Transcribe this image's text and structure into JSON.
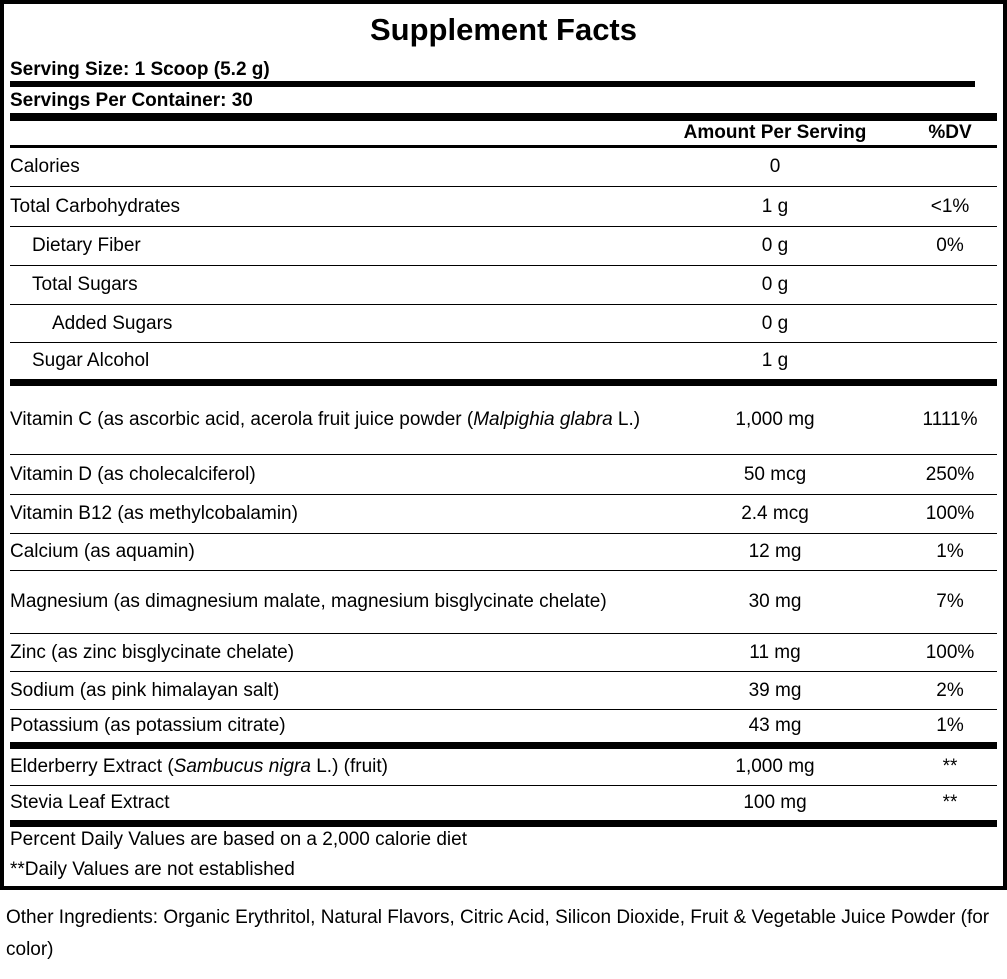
{
  "title": "Supplement Facts",
  "serving_size": "Serving Size: 1 Scoop (5.2 g)",
  "servings_per_container": "Servings Per Container: 30",
  "columns": {
    "amount": "Amount Per Serving",
    "dv": "%DV"
  },
  "rows": [
    {
      "name": "Calories",
      "amount": "0",
      "dv": ""
    },
    {
      "name": "Total Carbohydrates",
      "amount": "1 g",
      "dv": "<1%"
    },
    {
      "name": "Dietary Fiber",
      "amount": "0 g",
      "dv": "0%"
    },
    {
      "name": "Total Sugars",
      "amount": "0 g",
      "dv": ""
    },
    {
      "name": "Added Sugars",
      "amount": "0 g",
      "dv": ""
    },
    {
      "name": "Sugar Alcohol",
      "amount": "1 g",
      "dv": ""
    },
    {
      "name_a": "Vitamin C (as ascorbic acid, acerola fruit juice powder (",
      "name_italic": "Malpighia glabra",
      "name_b": " L.)",
      "amount": "1,000 mg",
      "dv": "1111%"
    },
    {
      "name": "Vitamin D (as cholecalciferol)",
      "amount": "50 mcg",
      "dv": "250%"
    },
    {
      "name": "Vitamin B12 (as methylcobalamin)",
      "amount": "2.4 mcg",
      "dv": "100%"
    },
    {
      "name": "Calcium (as aquamin)",
      "amount": "12 mg",
      "dv": "1%"
    },
    {
      "name": "Magnesium (as dimagnesium malate, magnesium bisglycinate chelate)",
      "amount": "30 mg",
      "dv": "7%"
    },
    {
      "name": "Zinc (as zinc bisglycinate chelate)",
      "amount": "11 mg",
      "dv": "100%"
    },
    {
      "name": "Sodium (as pink himalayan salt)",
      "amount": "39 mg",
      "dv": "2%"
    },
    {
      "name": "Potassium (as potassium citrate)",
      "amount": "43 mg",
      "dv": "1%"
    },
    {
      "name_a": "Elderberry Extract (",
      "name_italic": "Sambucus nigra",
      "name_b": " L.) (fruit)",
      "amount": "1,000 mg",
      "dv": "**"
    },
    {
      "name": "Stevia Leaf Extract",
      "amount": "100 mg",
      "dv": "**"
    }
  ],
  "footnotes": [
    "Percent Daily Values are based on a 2,000 calorie diet",
    "**Daily Values are not established"
  ],
  "other_ingredients": "Other Ingredients: Organic Erythritol, Natural Flavors, Citric Acid, Silicon Dioxide, Fruit & Vegetable Juice Powder (for color)"
}
